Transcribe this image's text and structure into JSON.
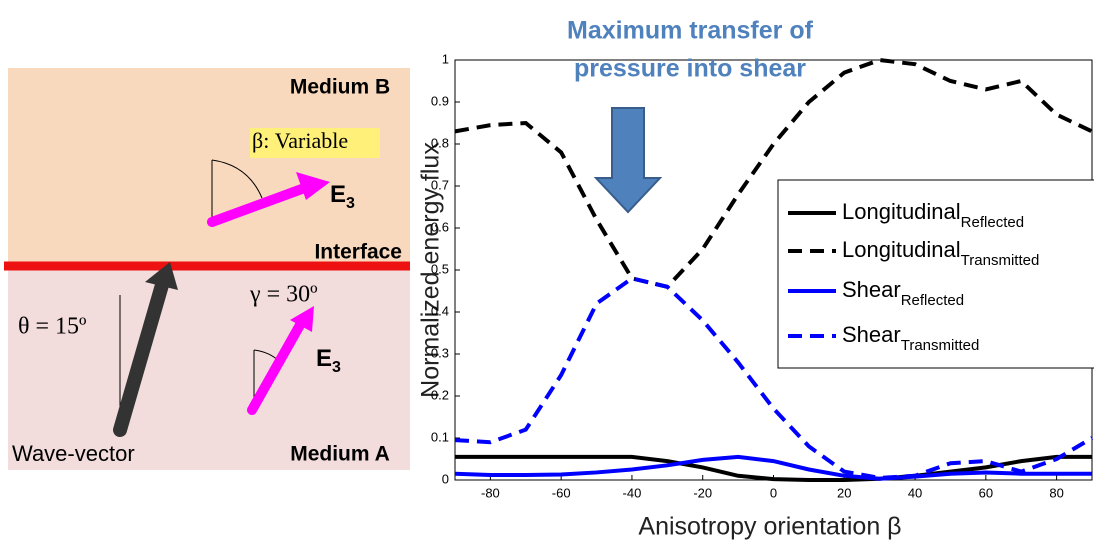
{
  "diagram": {
    "medium_b": "Medium B",
    "medium_a": "Medium A",
    "interface": "Interface",
    "beta": "β: Variable",
    "theta": "θ = 15º",
    "gamma": "γ = 30º",
    "wave_vector": "Wave-vector",
    "e3_upper": {
      "text": "E",
      "sub": "3"
    },
    "e3_lower": {
      "text": "E",
      "sub": "3"
    }
  },
  "chart_data": {
    "type": "line",
    "title": [
      "Maximum transfer of",
      "pressure into shear"
    ],
    "xlabel": "Anisotropy orientation β",
    "ylabel": "Normalized energy flux",
    "x": [
      -90,
      -80,
      -70,
      -60,
      -50,
      -40,
      -30,
      -20,
      -10,
      0,
      10,
      20,
      30,
      40,
      50,
      60,
      70,
      80,
      90
    ],
    "xlim": [
      -90,
      90
    ],
    "xticks": [
      -80,
      -60,
      -40,
      -20,
      0,
      20,
      40,
      60,
      80
    ],
    "ylim": [
      0,
      1
    ],
    "yticks": [
      0,
      0.1,
      0.2,
      0.3,
      0.4,
      0.5,
      0.6,
      0.7,
      0.8,
      0.9,
      1
    ],
    "series": [
      {
        "name": "Longitudinal",
        "subscript": "Reflected",
        "color": "#000000",
        "dash": false,
        "values": [
          0.055,
          0.055,
          0.055,
          0.055,
          0.055,
          0.055,
          0.045,
          0.03,
          0.01,
          0.002,
          0,
          0,
          0.003,
          0.01,
          0.02,
          0.03,
          0.045,
          0.055,
          0.055
        ]
      },
      {
        "name": "Longitudinal",
        "subscript": "Transmitted",
        "color": "#000000",
        "dash": true,
        "values": [
          0.83,
          0.845,
          0.85,
          0.78,
          0.62,
          0.48,
          0.46,
          0.55,
          0.68,
          0.8,
          0.9,
          0.97,
          1,
          0.99,
          0.95,
          0.93,
          0.95,
          0.87,
          0.83
        ]
      },
      {
        "name": "Shear",
        "subscript": "Reflected",
        "color": "#0000ff",
        "dash": false,
        "values": [
          0.015,
          0.012,
          0.012,
          0.013,
          0.018,
          0.025,
          0.035,
          0.048,
          0.055,
          0.045,
          0.025,
          0.01,
          0.003,
          0.008,
          0.015,
          0.018,
          0.015,
          0.015,
          0.015
        ]
      },
      {
        "name": "Shear",
        "subscript": "Transmitted",
        "color": "#0000ff",
        "dash": true,
        "values": [
          0.095,
          0.09,
          0.12,
          0.25,
          0.42,
          0.48,
          0.46,
          0.38,
          0.28,
          0.17,
          0.08,
          0.02,
          0.005,
          0.01,
          0.04,
          0.045,
          0.02,
          0.05,
          0.1
        ]
      }
    ]
  }
}
